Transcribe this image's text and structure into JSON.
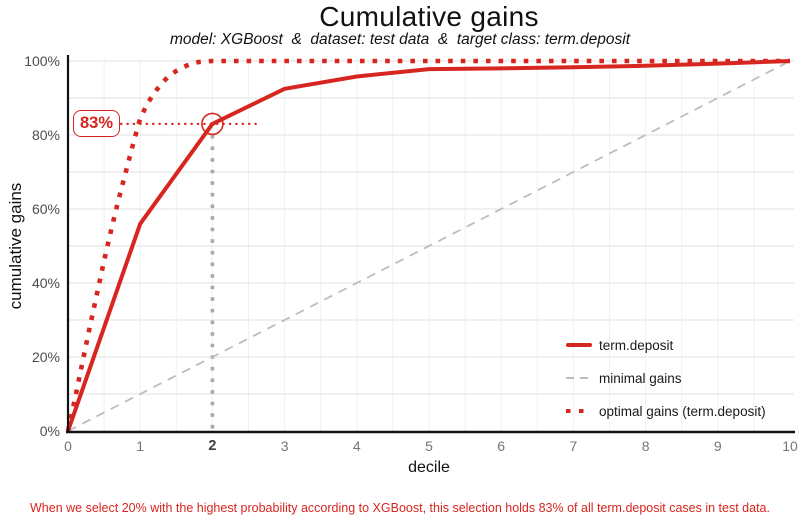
{
  "header": {
    "title": "Cumulative gains",
    "subtitle": "model: XGBoost  &  dataset: test data  &  target class: term.deposit"
  },
  "chart_data": {
    "type": "line",
    "title": "Cumulative gains",
    "subtitle": "model: XGBoost  &  dataset: test data  &  target class: term.deposit",
    "xlabel": "decile",
    "ylabel": "cumulative gains",
    "xlim": [
      0,
      10
    ],
    "ylim": [
      0,
      100
    ],
    "grid": "on",
    "legend_position": "inside-bottom-right",
    "x_ticks": [
      "0",
      "1",
      "2",
      "3",
      "4",
      "5",
      "6",
      "7",
      "8",
      "9",
      "10"
    ],
    "highlighted_x_tick": "2",
    "y_ticks": [
      "0%",
      "20%",
      "40%",
      "60%",
      "80%",
      "100%"
    ],
    "y_tick_values": [
      0,
      20,
      40,
      60,
      80,
      100
    ],
    "series": [
      {
        "name": "term.deposit",
        "style": "solid",
        "color": "#d7261f",
        "x": [
          0,
          1,
          2,
          3,
          4,
          5,
          6,
          7,
          8,
          9,
          10
        ],
        "y": [
          0,
          56,
          83,
          92.5,
          95.8,
          97.8,
          98.0,
          98.3,
          98.7,
          99.3,
          100
        ]
      },
      {
        "name": "minimal gains",
        "style": "dashed",
        "color": "#bdbdbd",
        "x": [
          0,
          10
        ],
        "y": [
          0,
          100
        ]
      },
      {
        "name": "optimal gains (term.deposit)",
        "style": "dotted",
        "color": "#d7261f",
        "x": [
          0,
          0.1,
          0.2,
          0.3,
          0.4,
          0.5,
          0.6,
          0.7,
          0.8,
          0.9,
          1.0,
          1.1,
          1.2,
          1.3,
          1.4,
          1.5,
          1.6,
          1.7,
          1.8,
          1.9,
          2.0,
          10
        ],
        "y": [
          0,
          9,
          18.5,
          28,
          37,
          46,
          54.5,
          62.5,
          70,
          77.5,
          84.5,
          88.5,
          91.5,
          94,
          96,
          97.3,
          98.4,
          99.2,
          99.7,
          99.9,
          100,
          100
        ]
      }
    ],
    "annotation": {
      "label": "83%",
      "x": 2,
      "y": 83,
      "line_color": "#d7261f",
      "vline_color": "#a9a9a9"
    },
    "colors": {
      "accent_red": "#d7261f",
      "minimal_gray": "#bdbdbd",
      "grid_major": "#e7e7e7",
      "grid_minor": "#f1f1f1",
      "axis_black": "#111111"
    }
  },
  "caption": {
    "text": "When we select 20% with the highest probability according to XGBoost, this selection holds 83% of all term.deposit cases in test data."
  }
}
